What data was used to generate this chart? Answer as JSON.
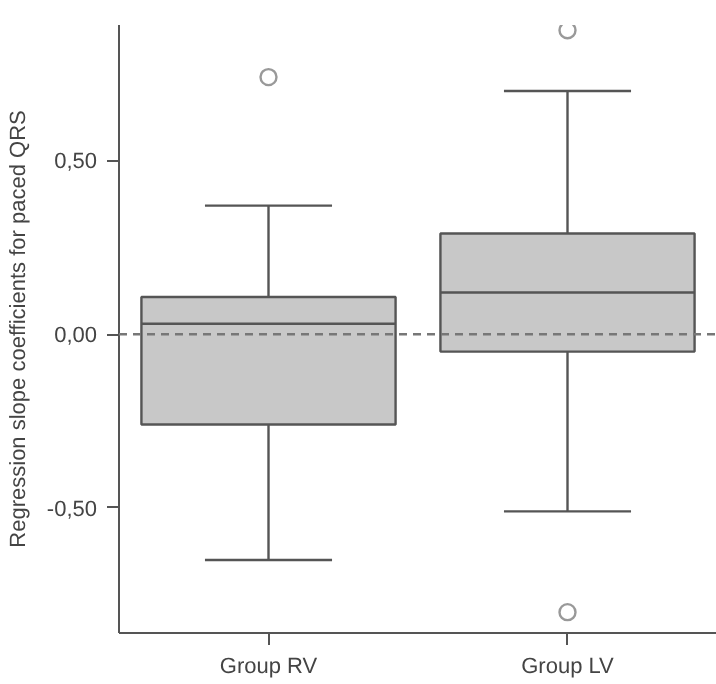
{
  "chart_data": {
    "type": "box",
    "ylabel": "Regression slope coefficients for paced QRS",
    "categories": [
      "Group RV",
      "Group LV"
    ],
    "boxes": [
      {
        "low": -0.65,
        "q1": -0.26,
        "median": 0.03,
        "q3": 0.107,
        "high": 0.37,
        "outliers": [
          0.74
        ]
      },
      {
        "low": -0.51,
        "q1": -0.05,
        "median": 0.12,
        "q3": 0.29,
        "high": 0.7,
        "outliers": [
          0.875,
          -0.8
        ]
      }
    ],
    "color": "#c8c8c8",
    "ylim": [
      -0.86,
      0.89
    ],
    "yticks": [
      {
        "value": -0.5,
        "label": "-0,50"
      },
      {
        "value": 0,
        "label": "0,00"
      },
      {
        "value": 0.5,
        "label": "0,50"
      }
    ],
    "ref_lines": [
      {
        "axis": "y",
        "value": 0,
        "line_style": "dashed"
      }
    ],
    "grid": false
  }
}
